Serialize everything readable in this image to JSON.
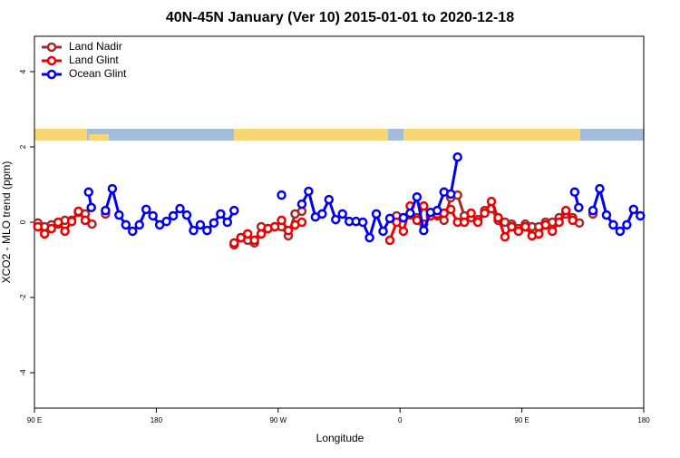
{
  "chart_data": {
    "type": "line",
    "title": "40N-45N January (Ver 10)   2015-01-01 to 2020-12-18",
    "x_label": "Longitude",
    "y_label": "XCO2 - MLO trend (ppm)",
    "xlim": [
      90,
      540
    ],
    "ylim": [
      -4.94,
      4.94
    ],
    "xticks": [
      {
        "value": 90,
        "label": "90 E"
      },
      {
        "value": 180,
        "label": "180"
      },
      {
        "value": 270,
        "label": "90 W"
      },
      {
        "value": 360,
        "label": "0"
      },
      {
        "value": 450,
        "label": "90 E"
      },
      {
        "value": 540,
        "label": "180"
      }
    ],
    "yticks": [
      -4,
      -2,
      0,
      2,
      4
    ],
    "legend": "top-left",
    "series": [
      {
        "name": "Land Nadir",
        "color": "#a52a2a",
        "x": [
          92.5,
          97.5,
          102.5,
          107.5,
          112.5,
          117.5,
          122.5,
          127.5,
          132.5,
          null,
          142.5,
          null,
          237.5,
          242.5,
          247.5,
          252.5,
          257.5,
          262.5,
          267.5,
          272.5,
          277.5,
          282.5,
          287.5,
          null,
          357.5,
          362.5,
          367.5,
          372.5,
          377.5,
          382.5,
          387.5,
          392.5,
          397.5,
          402.5,
          407.5,
          412.5,
          417.5,
          422.5,
          427.5,
          432.5,
          437.5,
          442.5,
          447.5,
          452.5,
          457.5,
          462.5,
          467.5,
          472.5,
          477.5,
          482.5,
          487.5,
          492.5,
          null,
          502.5
        ],
        "values": [
          -0.02,
          -0.12,
          -0.07,
          -0.05,
          0.05,
          0.05,
          0.26,
          0.22,
          -0.05,
          null,
          0.22,
          null,
          -0.6,
          -0.41,
          -0.48,
          -0.55,
          -0.12,
          -0.17,
          -0.12,
          -0.12,
          -0.36,
          0.22,
          0.29,
          null,
          0.17,
          0.12,
          0.19,
          0.12,
          -0.05,
          0.17,
          0.17,
          0.05,
          0.65,
          0.72,
          0.17,
          0.12,
          0.07,
          0.31,
          0.36,
          0.05,
          0,
          -0.05,
          -0.17,
          -0.05,
          -0.12,
          -0.12,
          0,
          0,
          0.12,
          0.22,
          0.12,
          -0.02,
          null,
          0.22
        ]
      },
      {
        "name": "Land Glint",
        "color": "#ee0000",
        "x": [
          92.5,
          97.5,
          102.5,
          107.5,
          112.5,
          117.5,
          122.5,
          127.5,
          null,
          237.5,
          242.5,
          247.5,
          252.5,
          257.5,
          262.5,
          267.5,
          272.5,
          277.5,
          282.5,
          287.5,
          null,
          352.5,
          357.5,
          362.5,
          367.5,
          372.5,
          377.5,
          382.5,
          387.5,
          392.5,
          397.5,
          402.5,
          407.5,
          412.5,
          417.5,
          422.5,
          427.5,
          432.5,
          437.5,
          442.5,
          447.5,
          452.5,
          457.5,
          462.5,
          467.5,
          472.5,
          477.5,
          482.5,
          487.5
        ],
        "values": [
          -0.12,
          -0.31,
          -0.17,
          0,
          -0.24,
          0.02,
          0.29,
          0.05,
          null,
          -0.55,
          -0.41,
          -0.31,
          -0.48,
          -0.31,
          -0.17,
          -0.12,
          0.05,
          -0.22,
          -0.07,
          0,
          null,
          -0.48,
          0,
          -0.24,
          0.43,
          0.05,
          0.43,
          0.17,
          0.22,
          0.24,
          0.34,
          0,
          0,
          0.24,
          0,
          0.24,
          0.55,
          0.12,
          -0.39,
          -0.12,
          -0.24,
          -0.12,
          -0.36,
          -0.31,
          -0.07,
          -0.24,
          0,
          0.31,
          0.05
        ]
      },
      {
        "name": "Ocean Glint",
        "color": "#0000ee",
        "x": [
          130,
          132,
          null,
          142.5,
          147.5,
          152.5,
          157.5,
          162.5,
          167.5,
          172.5,
          177.5,
          182.5,
          187.5,
          192.5,
          197.5,
          202.5,
          207.5,
          212.5,
          217.5,
          222.5,
          227.5,
          232.5,
          237.5,
          null,
          272.5,
          null,
          287.5,
          292.5,
          297.5,
          302.5,
          307.5,
          312.5,
          317.5,
          322.5,
          327.5,
          332.5,
          337.5,
          342.5,
          347.5,
          352.5,
          null,
          362.5,
          367.5,
          372.5,
          377.5,
          382.5,
          387.5,
          392.5,
          397.5,
          402.5,
          null,
          489,
          492,
          null,
          502.5,
          507.5,
          512.5,
          517.5,
          522.5,
          527.5,
          532.5,
          537.5
        ],
        "values": [
          0.8,
          0.39,
          null,
          0.31,
          0.89,
          0.19,
          -0.07,
          -0.24,
          -0.07,
          0.34,
          0.17,
          -0.07,
          0.02,
          0.17,
          0.36,
          0.19,
          -0.22,
          -0.07,
          -0.22,
          -0.02,
          0.22,
          0,
          0.31,
          null,
          0.72,
          null,
          0.48,
          0.82,
          0.14,
          0.22,
          0.6,
          0.07,
          0.22,
          0.02,
          0.02,
          0,
          -0.41,
          0.22,
          -0.24,
          0.1,
          null,
          0.12,
          0.24,
          0.67,
          -0.22,
          0.26,
          0.31,
          0.8,
          0.75,
          1.73,
          null,
          0.8,
          0.39,
          null,
          0.31,
          0.89,
          0.19,
          -0.07,
          -0.24,
          -0.07,
          0.34,
          0.17
        ]
      }
    ]
  }
}
